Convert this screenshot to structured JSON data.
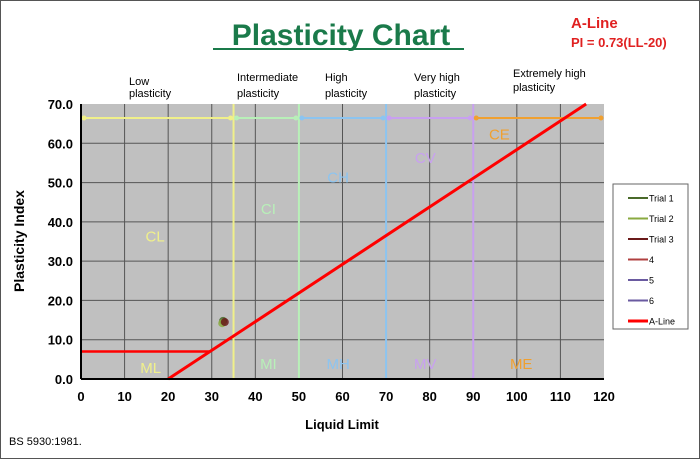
{
  "chart_data": {
    "type": "scatter",
    "title": "Plasticity Chart",
    "xlabel": "Liquid Limit",
    "ylabel": "Plasticity Index",
    "xlim": [
      0,
      120
    ],
    "ylim": [
      0,
      70
    ],
    "xticks": [
      "0",
      "10",
      "20",
      "30",
      "40",
      "50",
      "60",
      "70",
      "80",
      "90",
      "100",
      "110",
      "120"
    ],
    "yticks": [
      "0.0",
      "10.0",
      "20.0",
      "30.0",
      "40.0",
      "50.0",
      "60.0",
      "70.0"
    ],
    "grid": true,
    "aline_note": {
      "title": "A-Line",
      "formula": "PI = 0.73(LL-20)"
    },
    "aline": {
      "x": [
        20,
        115.9
      ],
      "y": [
        0,
        70
      ]
    },
    "ml_cl_boundary": {
      "x": [
        0,
        29.6
      ],
      "y": [
        7,
        7
      ]
    },
    "zones": [
      {
        "label": "Low plasticity",
        "from": 0,
        "to": 35,
        "color": "#f0f08a"
      },
      {
        "label": "Intermediate plasticity",
        "from": 35,
        "to": 50,
        "color": "#b8f0b8"
      },
      {
        "label": "High plasticity",
        "from": 50,
        "to": 70,
        "color": "#8cc4f0"
      },
      {
        "label": "Very high plasticity",
        "from": 70,
        "to": 90,
        "color": "#c8a0f0"
      },
      {
        "label": "Extremely high plasticity",
        "from": 90,
        "to": 120,
        "color": "#f0a030"
      }
    ],
    "region_labels": [
      {
        "text": "CL",
        "x": 17,
        "y": 35,
        "color": "#f0f08a"
      },
      {
        "text": "CI",
        "x": 43,
        "y": 42,
        "color": "#b8f0b8"
      },
      {
        "text": "CH",
        "x": 59,
        "y": 50,
        "color": "#8cc4f0"
      },
      {
        "text": "CV",
        "x": 79,
        "y": 55,
        "color": "#c8a0f0"
      },
      {
        "text": "CE",
        "x": 96,
        "y": 61,
        "color": "#f0a030"
      },
      {
        "text": "ML",
        "x": 16,
        "y": 1.5,
        "color": "#f0f08a"
      },
      {
        "text": "MI",
        "x": 43,
        "y": 2.5,
        "color": "#b8f0b8"
      },
      {
        "text": "MH",
        "x": 59,
        "y": 2.5,
        "color": "#8cc4f0"
      },
      {
        "text": "MV",
        "x": 79,
        "y": 2.5,
        "color": "#c8a0f0"
      },
      {
        "text": "ME",
        "x": 101,
        "y": 2.5,
        "color": "#f0a030"
      }
    ],
    "series": [
      {
        "name": "Trial 1",
        "color": "#4a6a2a",
        "points": [
          [
            32.6,
            14.8
          ]
        ]
      },
      {
        "name": "Trial 2",
        "color": "#8aaa40",
        "points": [
          [
            32.4,
            14.2
          ]
        ]
      },
      {
        "name": "Trial 3",
        "color": "#6a1a1a",
        "points": [
          [
            33.0,
            14.5
          ]
        ]
      },
      {
        "name": "4",
        "color": "#b04040",
        "points": []
      },
      {
        "name": "5",
        "color": "#6a5aa0",
        "points": []
      },
      {
        "name": "6",
        "color": "#6a5aa0",
        "points": []
      },
      {
        "name": "A-Line",
        "color": "#ff0000",
        "points": []
      }
    ],
    "legend_position": "right",
    "footnote": "BS 5930:1981."
  }
}
